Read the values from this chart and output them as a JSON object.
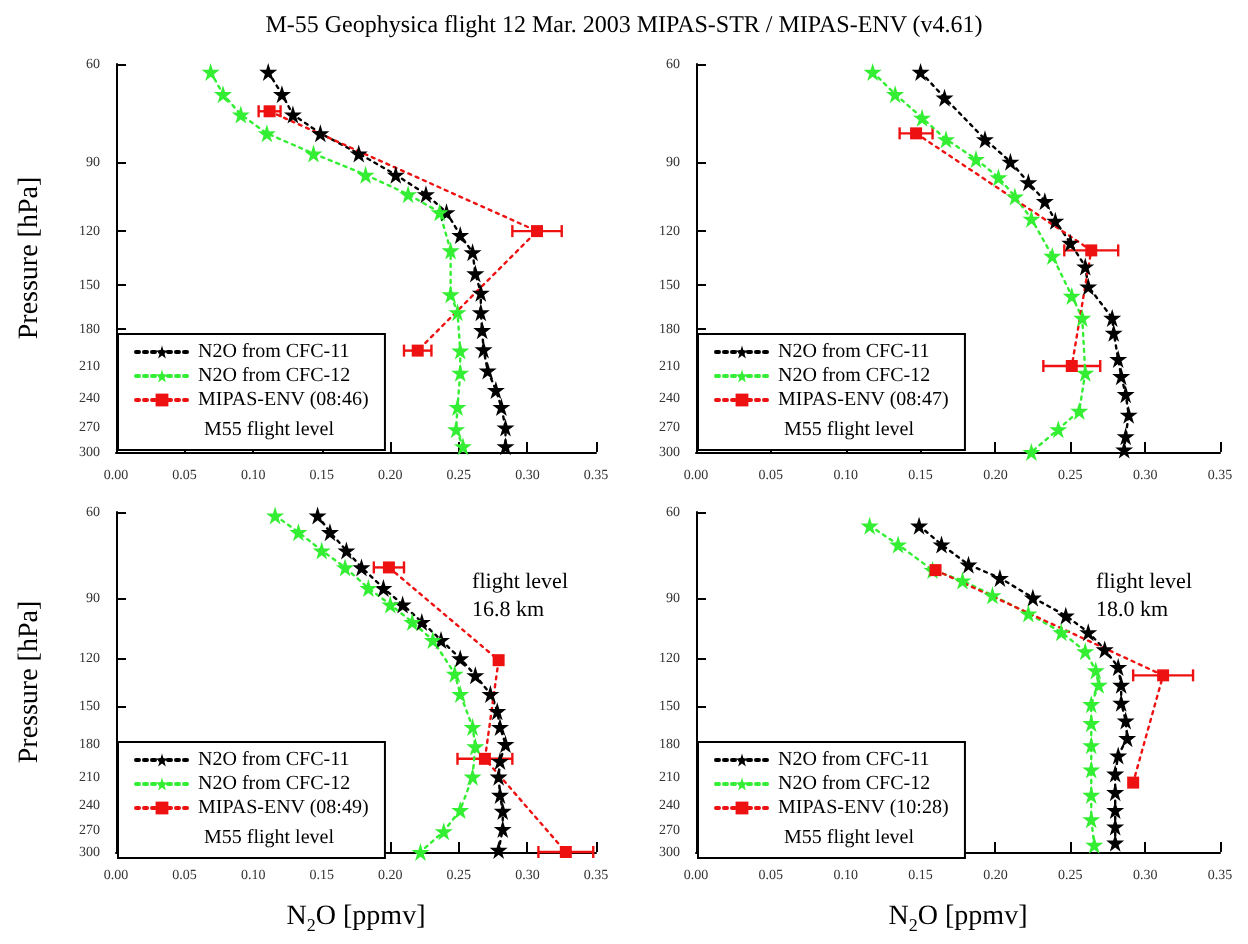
{
  "chart_data": [
    {
      "type": "line",
      "title": "M-55 Geophysica flight 12 Mar. 2003   MIPAS-STR / MIPAS-ENV (v4.61)",
      "ylabel": "Pressure [hPa]",
      "annotations": [
        "M55 flight level"
      ],
      "series": [
        {
          "name": "N2O from CFC-11",
          "color": "#000000",
          "marker": "star",
          "line_style": "dotted",
          "x": [
            0.111,
            0.121,
            0.129,
            0.149,
            0.177,
            0.204,
            0.226,
            0.241,
            0.251,
            0.26,
            0.262,
            0.266,
            0.266,
            0.267,
            0.268,
            0.271,
            0.277,
            0.281,
            0.284,
            0.284
          ],
          "values": [
            62,
            68,
            74,
            80,
            87,
            95,
            103,
            111,
            122,
            131,
            143,
            155,
            168,
            181,
            196,
            214,
            232,
            249,
            271,
            293
          ]
        },
        {
          "name": "N2O from CFC-12",
          "color": "#33ee33",
          "marker": "star",
          "line_style": "dotted",
          "x": [
            0.069,
            0.078,
            0.091,
            0.11,
            0.144,
            0.182,
            0.213,
            0.236,
            0.244,
            0.244,
            0.249,
            0.251,
            0.251,
            0.249,
            0.248,
            0.253
          ],
          "values": [
            62,
            68,
            74,
            80,
            87,
            95,
            103,
            111,
            130,
            156,
            168,
            197,
            216,
            249,
            273,
            293
          ]
        },
        {
          "name": "MIPAS-ENV (08:46)",
          "color": "#ee1111",
          "marker": "square",
          "line_style": "dotted",
          "x": [
            0.112,
            0.307,
            0.22
          ],
          "values": [
            73,
            120,
            197
          ],
          "xerrors": [
            0.008,
            0.018,
            0.01
          ]
        }
      ],
      "xlim": [
        0,
        0.35
      ],
      "ylim": [
        300,
        60
      ],
      "log": "y",
      "legend": "bottom left",
      "xticks": [
        {
          "value": 0,
          "label": "0.00"
        },
        {
          "value": 0.05,
          "label": "0.05"
        },
        {
          "value": 0.1,
          "label": "0.10"
        },
        {
          "value": 0.15,
          "label": "0.15"
        },
        {
          "value": 0.2,
          "label": "0.20"
        },
        {
          "value": 0.25,
          "label": "0.25"
        },
        {
          "value": 0.3,
          "label": "0.30"
        },
        {
          "value": 0.35,
          "label": "0.35"
        }
      ],
      "yticks": [
        60,
        90,
        120,
        150,
        180,
        210,
        240,
        270,
        300
      ]
    },
    {
      "type": "line",
      "annotations": [
        "M55 flight level"
      ],
      "series": [
        {
          "name": "N2O from CFC-11",
          "color": "#000000",
          "marker": "star",
          "line_style": "dotted",
          "x": [
            0.15,
            0.166,
            0.193,
            0.21,
            0.222,
            0.233,
            0.24,
            0.25,
            0.26,
            0.262,
            0.278,
            0.279,
            0.282,
            0.284,
            0.287,
            0.289,
            0.287,
            0.286
          ],
          "values": [
            62,
            69,
            82,
            90,
            98,
            106,
            115,
            126,
            139,
            151,
            172,
            183,
            204,
            219,
            236,
            257,
            281,
            297
          ]
        },
        {
          "name": "N2O from CFC-12",
          "color": "#33ee33",
          "marker": "star",
          "line_style": "dotted",
          "x": [
            0.118,
            0.133,
            0.151,
            0.167,
            0.187,
            0.202,
            0.213,
            0.224,
            0.238,
            0.251,
            0.258,
            0.26,
            0.256,
            0.242,
            0.224
          ],
          "values": [
            62,
            68,
            75,
            82,
            89,
            96,
            104,
            114,
            133,
            157,
            172,
            216,
            253,
            273,
            300
          ]
        },
        {
          "name": "MIPAS-ENV (08:47)",
          "color": "#ee1111",
          "marker": "square",
          "line_style": "dotted",
          "x": [
            0.147,
            0.264,
            0.251
          ],
          "values": [
            80,
            130,
            210
          ],
          "xerrors": [
            0.011,
            0.018,
            0.019
          ]
        }
      ],
      "xlim": [
        0,
        0.35
      ],
      "ylim": [
        300,
        60
      ],
      "log": "y",
      "legend": "bottom left",
      "xticks": [
        {
          "value": 0,
          "label": "0.00"
        },
        {
          "value": 0.05,
          "label": "0.05"
        },
        {
          "value": 0.1,
          "label": "0.10"
        },
        {
          "value": 0.15,
          "label": "0.15"
        },
        {
          "value": 0.2,
          "label": "0.20"
        },
        {
          "value": 0.25,
          "label": "0.25"
        },
        {
          "value": 0.3,
          "label": "0.30"
        },
        {
          "value": 0.35,
          "label": "0.35"
        }
      ],
      "yticks": [
        60,
        90,
        120,
        150,
        180,
        210,
        240,
        270,
        300
      ]
    },
    {
      "type": "line",
      "xlabel": "N$_{2}$O [ppmv]",
      "ylabel": "Pressure [hPa]",
      "annotations": [
        "M55 flight level",
        "flight level\n16.8 km"
      ],
      "series": [
        {
          "name": "N2O from CFC-11",
          "color": "#000000",
          "marker": "star",
          "line_style": "dotted",
          "x": [
            0.147,
            0.156,
            0.168,
            0.179,
            0.195,
            0.209,
            0.223,
            0.237,
            0.251,
            0.262,
            0.273,
            0.278,
            0.28,
            0.284,
            0.28,
            0.279,
            0.28,
            0.282,
            0.282,
            0.279
          ],
          "values": [
            61,
            66,
            72,
            78,
            86,
            93,
            101,
            110,
            120,
            130,
            142,
            154,
            166,
            180,
            195,
            210,
            229,
            247,
            269,
            297
          ]
        },
        {
          "name": "N2O from CFC-12",
          "color": "#33ee33",
          "marker": "star",
          "line_style": "dotted",
          "x": [
            0.116,
            0.133,
            0.15,
            0.167,
            0.184,
            0.2,
            0.216,
            0.231,
            0.247,
            0.251,
            0.26,
            0.262,
            0.26,
            0.251,
            0.239,
            0.222
          ],
          "values": [
            61,
            66,
            72,
            78,
            86,
            93,
            101,
            110,
            129,
            142,
            166,
            182,
            210,
            246,
            272,
            300
          ]
        },
        {
          "name": "MIPAS-ENV (08:49)",
          "color": "#ee1111",
          "marker": "square",
          "line_style": "dotted",
          "x": [
            0.199,
            0.279,
            0.269,
            0.328
          ],
          "values": [
            78,
            121,
            193,
            300
          ],
          "xerrors": [
            0.011,
            null,
            0.02,
            0.02
          ]
        }
      ],
      "xlim": [
        0,
        0.35
      ],
      "ylim": [
        300,
        60
      ],
      "log": "y",
      "legend": "bottom left",
      "xticks": [
        {
          "value": 0,
          "label": "0.00"
        },
        {
          "value": 0.05,
          "label": "0.05"
        },
        {
          "value": 0.1,
          "label": "0.10"
        },
        {
          "value": 0.15,
          "label": "0.15"
        },
        {
          "value": 0.2,
          "label": "0.20"
        },
        {
          "value": 0.25,
          "label": "0.25"
        },
        {
          "value": 0.3,
          "label": "0.30"
        },
        {
          "value": 0.35,
          "label": "0.35"
        }
      ],
      "yticks": [
        60,
        90,
        120,
        150,
        180,
        210,
        240,
        270,
        300
      ]
    },
    {
      "type": "line",
      "xlabel": "N$_{2}$O [ppmv]",
      "annotations": [
        "M55 flight level",
        "flight level\n18.0 km"
      ],
      "series": [
        {
          "name": "N2O from CFC-11",
          "color": "#000000",
          "marker": "star",
          "line_style": "dotted",
          "x": [
            0.149,
            0.164,
            0.182,
            0.203,
            0.225,
            0.247,
            0.262,
            0.273,
            0.282,
            0.284,
            0.284,
            0.287,
            0.288,
            0.282,
            0.28,
            0.28,
            0.28,
            0.28,
            0.28
          ],
          "values": [
            64,
            70,
            77,
            82,
            90,
            98,
            106,
            115,
            125,
            136,
            148,
            161,
            175,
            190,
            207,
            226,
            246,
            266,
            287
          ]
        },
        {
          "name": "N2O from CFC-12",
          "color": "#33ee33",
          "marker": "star",
          "line_style": "dotted",
          "x": [
            0.116,
            0.135,
            0.158,
            0.178,
            0.198,
            0.222,
            0.244,
            0.26,
            0.267,
            0.269,
            0.264,
            0.264,
            0.264,
            0.264,
            0.264,
            0.264,
            0.266
          ],
          "values": [
            64,
            70,
            79,
            83,
            89,
            97,
            106,
            116,
            127,
            136,
            149,
            163,
            181,
            203,
            229,
            257,
            290
          ]
        },
        {
          "name": "MIPAS-ENV (10:28)",
          "color": "#ee1111",
          "marker": "square",
          "line_style": "dotted",
          "x": [
            0.16,
            0.312,
            0.292
          ],
          "values": [
            79,
            130,
            216
          ],
          "xerrors": [
            null,
            0.02,
            null
          ]
        }
      ],
      "xlim": [
        0,
        0.35
      ],
      "ylim": [
        300,
        60
      ],
      "log": "y",
      "legend": "bottom left",
      "xticks": [
        {
          "value": 0,
          "label": "0.00"
        },
        {
          "value": 0.05,
          "label": "0.05"
        },
        {
          "value": 0.1,
          "label": "0.10"
        },
        {
          "value": 0.15,
          "label": "0.15"
        },
        {
          "value": 0.2,
          "label": "0.20"
        },
        {
          "value": 0.25,
          "label": "0.25"
        },
        {
          "value": 0.3,
          "label": "0.30"
        },
        {
          "value": 0.35,
          "label": "0.35"
        }
      ],
      "yticks": [
        60,
        90,
        120,
        150,
        180,
        210,
        240,
        270,
        300
      ]
    }
  ]
}
